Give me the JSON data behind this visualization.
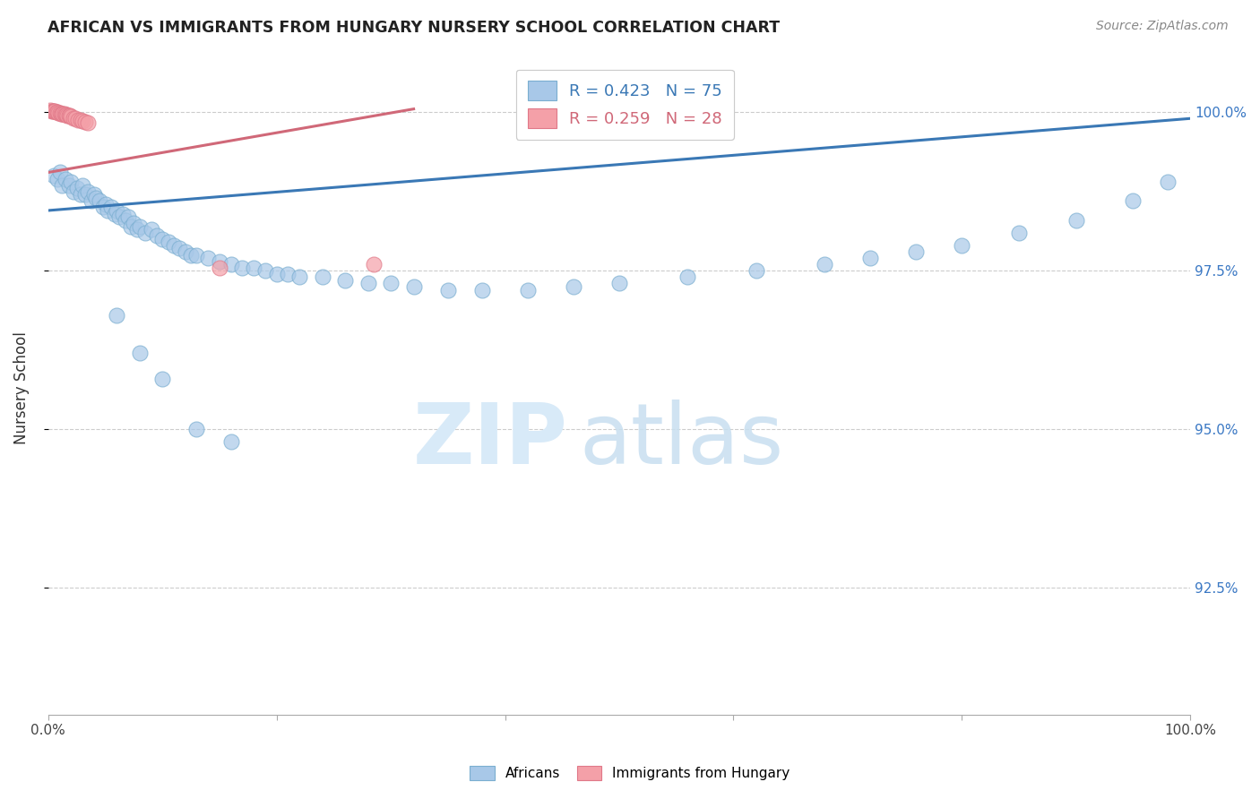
{
  "title": "AFRICAN VS IMMIGRANTS FROM HUNGARY NURSERY SCHOOL CORRELATION CHART",
  "source": "Source: ZipAtlas.com",
  "ylabel": "Nursery School",
  "ytick_labels": [
    "100.0%",
    "97.5%",
    "95.0%",
    "92.5%"
  ],
  "ytick_values": [
    1.0,
    0.975,
    0.95,
    0.925
  ],
  "xlim": [
    0.0,
    1.0
  ],
  "ylim": [
    0.905,
    1.008
  ],
  "africans_legend": "Africans",
  "hungary_legend": "Immigrants from Hungary",
  "blue_color": "#a8c8e8",
  "pink_color": "#f4a0a8",
  "blue_edge_color": "#7aaed0",
  "pink_edge_color": "#e07888",
  "blue_line_color": "#3a78b5",
  "pink_line_color": "#d06878",
  "legend_blue_label": "R = 0.423   N = 75",
  "legend_pink_label": "R = 0.259   N = 28",
  "blue_line_x": [
    0.0,
    1.0
  ],
  "blue_line_y": [
    0.9845,
    0.999
  ],
  "pink_line_x": [
    0.0,
    0.32
  ],
  "pink_line_y": [
    0.9905,
    1.0005
  ],
  "blue_x": [
    0.005,
    0.008,
    0.01,
    0.012,
    0.015,
    0.018,
    0.02,
    0.022,
    0.025,
    0.028,
    0.03,
    0.032,
    0.035,
    0.038,
    0.04,
    0.042,
    0.045,
    0.048,
    0.05,
    0.052,
    0.055,
    0.058,
    0.06,
    0.062,
    0.065,
    0.068,
    0.07,
    0.072,
    0.075,
    0.078,
    0.08,
    0.085,
    0.09,
    0.095,
    0.1,
    0.105,
    0.11,
    0.115,
    0.12,
    0.125,
    0.13,
    0.14,
    0.15,
    0.16,
    0.17,
    0.18,
    0.19,
    0.2,
    0.21,
    0.22,
    0.24,
    0.26,
    0.28,
    0.3,
    0.32,
    0.35,
    0.38,
    0.42,
    0.46,
    0.5,
    0.56,
    0.62,
    0.68,
    0.72,
    0.76,
    0.8,
    0.85,
    0.9,
    0.95,
    0.98,
    0.06,
    0.08,
    0.1,
    0.13,
    0.16
  ],
  "blue_y": [
    0.99,
    0.9895,
    0.9905,
    0.9885,
    0.9895,
    0.9885,
    0.989,
    0.9875,
    0.988,
    0.987,
    0.9885,
    0.987,
    0.9875,
    0.986,
    0.987,
    0.9865,
    0.986,
    0.985,
    0.9855,
    0.9845,
    0.985,
    0.984,
    0.9845,
    0.9835,
    0.984,
    0.983,
    0.9835,
    0.982,
    0.9825,
    0.9815,
    0.982,
    0.981,
    0.9815,
    0.9805,
    0.98,
    0.9795,
    0.979,
    0.9785,
    0.978,
    0.9775,
    0.9775,
    0.977,
    0.9765,
    0.976,
    0.9755,
    0.9755,
    0.975,
    0.9745,
    0.9745,
    0.974,
    0.974,
    0.9735,
    0.973,
    0.973,
    0.9725,
    0.972,
    0.972,
    0.972,
    0.9725,
    0.973,
    0.974,
    0.975,
    0.976,
    0.977,
    0.978,
    0.979,
    0.981,
    0.983,
    0.986,
    0.989,
    0.968,
    0.962,
    0.958,
    0.95,
    0.948
  ],
  "pink_x": [
    0.002,
    0.003,
    0.004,
    0.005,
    0.006,
    0.007,
    0.008,
    0.009,
    0.01,
    0.011,
    0.012,
    0.013,
    0.014,
    0.015,
    0.016,
    0.017,
    0.018,
    0.019,
    0.02,
    0.022,
    0.024,
    0.026,
    0.028,
    0.03,
    0.032,
    0.035,
    0.15,
    0.285
  ],
  "pink_y": [
    1.0003,
    1.0002,
    1.0002,
    1.0001,
    1.0001,
    1.0,
    1.0,
    0.9999,
    0.9999,
    0.9998,
    0.9998,
    0.9997,
    0.9997,
    0.9996,
    0.9996,
    0.9995,
    0.9995,
    0.9994,
    0.9993,
    0.9991,
    0.999,
    0.9988,
    0.9987,
    0.9986,
    0.9985,
    0.9983,
    0.9755,
    0.976
  ]
}
